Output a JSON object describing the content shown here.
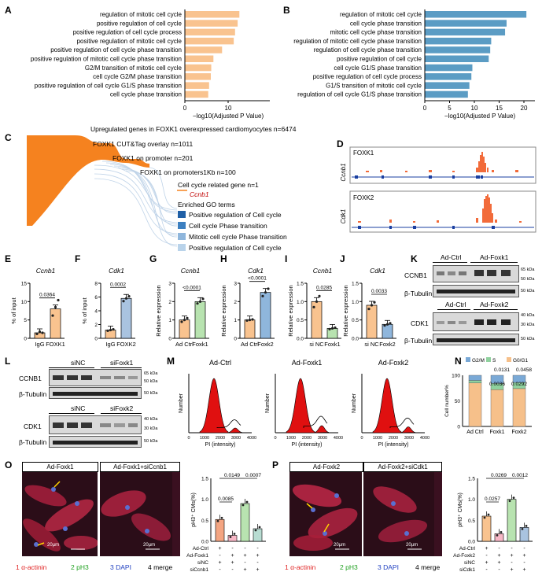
{
  "panels": {
    "A": {
      "label": "A",
      "xlabel": "−log10(Adjusted P Value)",
      "ticks": [
        "0",
        "10"
      ],
      "terms": [
        "regulation of mitotic cell cycle",
        "positive regulation of cell cycle",
        "positive regulation of cell cycle process",
        "positive regulation of mitotic cell cycle",
        "positive regulation of cell cycle phase transition",
        "positive regulation of mitotic cell cycle phase transition",
        "G2/M transition of mitotic cell cycle",
        "cell cycle G2/M phase transition",
        "positive regulation of cell cycle G1/S phase transition",
        "cell cycle phase transition"
      ],
      "values": [
        12.6,
        12.2,
        11.6,
        11.3,
        8.6,
        6.6,
        6.1,
        6.0,
        5.6,
        5.4
      ],
      "color": "#f9c38f"
    },
    "B": {
      "label": "B",
      "xlabel": "−log10(Adjusted P Value)",
      "ticks": [
        "0",
        "5",
        "10",
        "15",
        "20"
      ],
      "terms": [
        "regulation of mitotic cell cycle",
        "cell cycle phase transition",
        "mitotic cell cycle phase transition",
        "regulation of mitotic cell cycle phase transition",
        "regulation of cell cycle phase transition",
        "positive regulation of cell cycle",
        "cell cycle G1/S phase transition",
        "positive regulation of cell cycle process",
        "G1/S transition of mitotic cell cycle",
        "regulation of cell cycle G1/S phase transition"
      ],
      "values": [
        20.5,
        16.5,
        16.2,
        13.4,
        13.2,
        12.9,
        9.6,
        9.4,
        9.0,
        8.7
      ],
      "color": "#5b9cc4"
    },
    "C": {
      "label": "C",
      "title": "Upregulated genes in FOXK1 overexpressed cardiomyocytes n=6474",
      "l1": "FOXK1 CUT&Tag overlay n=1011",
      "l2": "FOXK1 on promoter n=201",
      "l3": "FOXK1 on promoters1Kb n=100",
      "l4": "Cell cycle related gene n=1",
      "gene": "Ccnb1",
      "go_title": "Enriched GO terms",
      "go": [
        "Positive regulation of Cell cycle",
        "Cell cycle Phase transition",
        "Mitotic cell cycle Phase transition",
        "Positive regulation of Cell cycle"
      ],
      "go_colors": [
        "#1f5fa6",
        "#3c7fc0",
        "#8fb6dc",
        "#b9d3ea"
      ]
    },
    "D": {
      "label": "D",
      "t1": "FOXK1",
      "t2": "FOXK2",
      "g1": "Ccnb1",
      "g2": "Cdk1"
    },
    "E": {
      "label": "E",
      "title": "Ccnb1",
      "ylabel": "% of input",
      "p": "0.0364",
      "cats": [
        "IgG",
        "FOXK1"
      ],
      "values": [
        1.5,
        8
      ],
      "ticks": [
        "0",
        "5",
        "10",
        "15"
      ]
    },
    "F": {
      "label": "F",
      "title": "Cdk1",
      "ylabel": "% of input",
      "p": "0.0002",
      "cats": [
        "IgG",
        "FOXK2"
      ],
      "values": [
        1.2,
        5.8
      ],
      "ticks": [
        "0",
        "2",
        "4",
        "6",
        "8"
      ]
    },
    "G": {
      "label": "G",
      "title": "Ccnb1",
      "ylabel": "Relative expression",
      "p": "<0.0001",
      "cats": [
        "Ad Ctrl",
        "Foxk1"
      ],
      "values": [
        1,
        2
      ],
      "ticks": [
        "0",
        "1",
        "2",
        "3"
      ]
    },
    "H": {
      "label": "H",
      "title": "Cdk1",
      "ylabel": "Relative expression",
      "p": "<0.0001",
      "cats": [
        "Ad Ctrl",
        "Foxk2"
      ],
      "values": [
        1,
        2.5
      ],
      "ticks": [
        "0",
        "1",
        "2",
        "3"
      ]
    },
    "I": {
      "label": "I",
      "title": "Ccnb1",
      "ylabel": "Relative expression",
      "p": "0.0285",
      "cats": [
        "si NC",
        "Foxk1"
      ],
      "values": [
        1,
        0.27
      ],
      "ticks": [
        "0.0",
        "0.5",
        "1.0",
        "1.5"
      ]
    },
    "J": {
      "label": "J",
      "title": "Cdk1",
      "ylabel": "Relative expression",
      "p": "0.0033",
      "cats": [
        "si NC",
        "Foxk2"
      ],
      "values": [
        0.9,
        0.38
      ],
      "ticks": [
        "0.0",
        "0.5",
        "1.0",
        "1.5"
      ]
    },
    "K": {
      "label": "K",
      "h1": "Ad-Ctrl",
      "h2": "Ad-Foxk1",
      "h3": "Ad-Ctrl",
      "h4": "Ad-Foxk2",
      "b1": "CCNB1",
      "b2": "β-Tubulin",
      "b3": "CDK1",
      "b4": "β-Tubulin",
      "m1": "65 kDa",
      "m2": "50 kDa",
      "m3": "50 kDa",
      "m4": "40 kDa",
      "m5": "30 kDa",
      "m6": "50 kDa"
    },
    "L": {
      "label": "L",
      "h1": "siNC",
      "h2": "siFoxk1",
      "h3": "siNC",
      "h4": "siFoxk2",
      "b1": "CCNB1",
      "b2": "β-Tubulin",
      "b3": "CDK1",
      "b4": "β-Tubulin",
      "m1": "65 kDa",
      "m2": "50 kDa",
      "m3": "50 kDa",
      "m4": "40 kDa",
      "m5": "30 kDa",
      "m6": "50 kDa"
    },
    "M": {
      "label": "M",
      "t1": "Ad-Ctrl",
      "t2": "Ad-Foxk1",
      "t3": "Ad-Foxk2",
      "ylabel": "Number",
      "xlabel": "PI (intensity)",
      "xticks": [
        "0",
        "1000",
        "2000",
        "3000",
        "4000"
      ]
    },
    "N": {
      "label": "N",
      "legend": [
        "G2/M",
        "S",
        "G0/G1"
      ],
      "legend_colors": [
        "#7aa9d6",
        "#8fd19e",
        "#f6c08a"
      ],
      "ylabel": "Cell number%",
      "cats": [
        "Ad Ctrl",
        "Foxk1",
        "Foxk2"
      ],
      "ticks": [
        "0",
        "50",
        "100"
      ],
      "p1": "0.0131",
      "p2": "0.0458",
      "p3": "0.0036",
      "p4": "0.0292"
    },
    "O": {
      "label": "O",
      "h1": "Ad-Foxk1",
      "h2": "Ad-Foxk1+siCcnb1",
      "scale": "20µm",
      "c1": "1 α-actinin",
      "c2": "2 pH3",
      "c3": "3 DAPI",
      "c4": "4 merge",
      "ylabel": "pH3⁺ CMs(%)",
      "ticks": [
        "0.0",
        "0.5",
        "1.0",
        "1.5"
      ],
      "p1": "0.0085",
      "p2": "0.0149",
      "p3": "0.0007",
      "rows": [
        "Ad-Ctrl",
        "Ad-Foxk1",
        "siNC",
        "siCcnb1"
      ],
      "signs": [
        [
          "+",
          "-",
          "-",
          "-"
        ],
        [
          "-",
          "+",
          "+",
          "+"
        ],
        [
          "+",
          "+",
          "-",
          "-"
        ],
        [
          "-",
          "-",
          "+",
          "+"
        ]
      ],
      "values": [
        0.52,
        0.14,
        0.9,
        0.3
      ]
    },
    "P": {
      "label": "P",
      "h1": "Ad-Foxk2",
      "h2": "Ad-Foxk2+siCdk1",
      "scale": "20µm",
      "c1": "1 α-actinin",
      "c2": "2 pH3",
      "c3": "3 DAPI",
      "c4": "4 merge",
      "ylabel": "pH3⁺ CMs(%)",
      "ticks": [
        "0.0",
        "0.5",
        "1.0",
        "1.5"
      ],
      "p1": "0.0257",
      "p2": "0.0269",
      "p3": "0.0012",
      "rows": [
        "Ad-Ctrl",
        "Ad-Foxk2",
        "siNC",
        "siCdk1"
      ],
      "signs": [
        [
          "+",
          "-",
          "-",
          "-"
        ],
        [
          "-",
          "+",
          "+",
          "+"
        ],
        [
          "+",
          "+",
          "-",
          "-"
        ],
        [
          "-",
          "-",
          "+",
          "+"
        ]
      ],
      "values": [
        0.6,
        0.18,
        1.0,
        0.33
      ]
    }
  }
}
